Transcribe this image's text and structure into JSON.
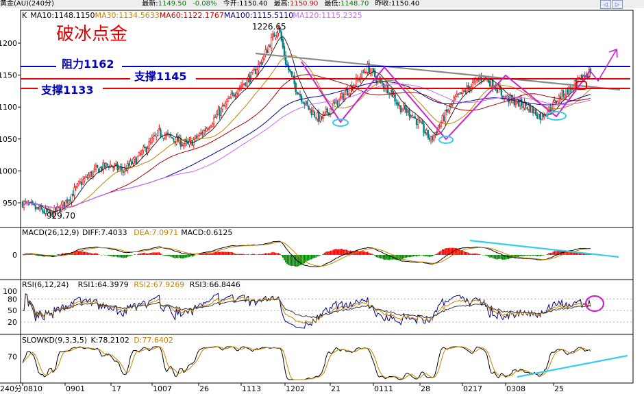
{
  "header": {
    "symbol": "黄金(AU)(240分)",
    "latest_label": "最新:",
    "latest": "1149.50",
    "change": "-0.08%",
    "open_label": "今开:",
    "open": "1150.40",
    "high_label": "最高:",
    "high": "1150.90",
    "low_label": "最低:",
    "low": "1148.70",
    "prevclose_label": "昨收:",
    "prevclose": "1150.40",
    "nav_left": "◁",
    "nav_right": "▷"
  },
  "colors": {
    "up": "#ff0000",
    "down": "#008080",
    "ma10": "#222222",
    "ma30": "#c78000",
    "ma60": "#b00000",
    "ma100": "#0000a0",
    "ma120": "#cc66ff",
    "resist": "#0000c0",
    "support": "#e00000",
    "trend": "#888888",
    "pattern": "#cc22cc",
    "marker": "#33ccee"
  },
  "main": {
    "ma_legend": [
      {
        "text": "K",
        "color": "#000000"
      },
      {
        "text": "MA10:1148.1150",
        "color": "#000000"
      },
      {
        "text": "MA30:1134.5633",
        "color": "#c78000"
      },
      {
        "text": "MA60:1122.1767",
        "color": "#c00000"
      },
      {
        "text": "MA100:1115.5110",
        "color": "#000080"
      },
      {
        "text": "MA120:1115.2325",
        "color": "#cc66ff"
      }
    ],
    "title": "破冰点金",
    "resist_label": "阻力1162",
    "support1_label": "支撑1145",
    "support2_label": "支撑1133",
    "peak_label": "1226.65",
    "trough_label": "929.70"
  },
  "macd": {
    "legend": [
      {
        "text": "MACD(26,12,9)",
        "color": "#000000"
      },
      {
        "text": "DIFF:7.4033",
        "color": "#000000"
      },
      {
        "text": "DEA:7.0971",
        "color": "#c78000"
      },
      {
        "text": "MACD:0.6125",
        "color": "#000000"
      }
    ]
  },
  "rsi": {
    "legend": [
      {
        "text": "RSI(6,12,24)",
        "color": "#000000"
      },
      {
        "text": "RSI1:64.3979",
        "color": "#000000"
      },
      {
        "text": "RSI2:67.9269",
        "color": "#c78000"
      },
      {
        "text": "RSI3:66.8446",
        "color": "#000000"
      }
    ]
  },
  "kd": {
    "legend": [
      {
        "text": "SLOWKD(9,3,3,5)",
        "color": "#000000"
      },
      {
        "text": "K:78.2102",
        "color": "#000000"
      },
      {
        "text": "D:77.6402",
        "color": "#c78000"
      }
    ]
  },
  "xaxis": {
    "period_label": "240分"
  },
  "chart_data": {
    "type": "candlestick",
    "y_ticks": [
      950,
      1000,
      1050,
      1100,
      1150,
      1200
    ],
    "ylim": [
      920,
      1240
    ],
    "resistance": 1162,
    "supports": [
      1145,
      1133
    ],
    "peak": 1226.65,
    "trough": 929.7,
    "x_ticks": [
      "0810",
      "0901",
      "17",
      "1007",
      "26",
      "1113",
      "1202",
      "21",
      "0111",
      "28",
      "0217",
      "0308",
      "25"
    ],
    "price_path": [
      [
        0,
        950
      ],
      [
        10,
        940
      ],
      [
        20,
        932
      ],
      [
        28,
        946
      ],
      [
        40,
        980
      ],
      [
        50,
        1000
      ],
      [
        60,
        1010
      ],
      [
        70,
        1000
      ],
      [
        80,
        1020
      ],
      [
        95,
        1060
      ],
      [
        105,
        1050
      ],
      [
        115,
        1040
      ],
      [
        125,
        1060
      ],
      [
        140,
        1100
      ],
      [
        150,
        1130
      ],
      [
        160,
        1150
      ],
      [
        168,
        1180
      ],
      [
        172,
        1200
      ],
      [
        178,
        1226.65
      ],
      [
        183,
        1170
      ],
      [
        190,
        1130
      ],
      [
        198,
        1100
      ],
      [
        207,
        1080
      ],
      [
        215,
        1100
      ],
      [
        222,
        1115
      ],
      [
        232,
        1140
      ],
      [
        240,
        1162
      ],
      [
        248,
        1140
      ],
      [
        256,
        1125
      ],
      [
        262,
        1100
      ],
      [
        270,
        1090
      ],
      [
        277,
        1070
      ],
      [
        284,
        1048
      ],
      [
        292,
        1080
      ],
      [
        300,
        1110
      ],
      [
        310,
        1130
      ],
      [
        320,
        1148
      ],
      [
        328,
        1135
      ],
      [
        335,
        1115
      ],
      [
        343,
        1108
      ],
      [
        352,
        1100
      ],
      [
        360,
        1085
      ],
      [
        368,
        1100
      ],
      [
        375,
        1120
      ],
      [
        382,
        1130
      ],
      [
        390,
        1148
      ],
      [
        395,
        1156
      ]
    ],
    "ma_values": {
      "MA10": 1148.115,
      "MA30": 1134.5633,
      "MA60": 1122.1767,
      "MA100": 1115.511,
      "MA120": 1115.2325
    },
    "macd": {
      "DIFF": 7.4033,
      "DEA": 7.0971,
      "MACD": 0.6125,
      "y_ticks": [
        0
      ]
    },
    "rsi": {
      "RSI1": 64.3979,
      "RSI2": 67.9269,
      "RSI3": 66.8446,
      "y_ticks": [
        20,
        50,
        80,
        100
      ]
    },
    "slowkd": {
      "K": 78.2102,
      "D": 77.6402,
      "y_ticks": [
        70
      ]
    }
  }
}
